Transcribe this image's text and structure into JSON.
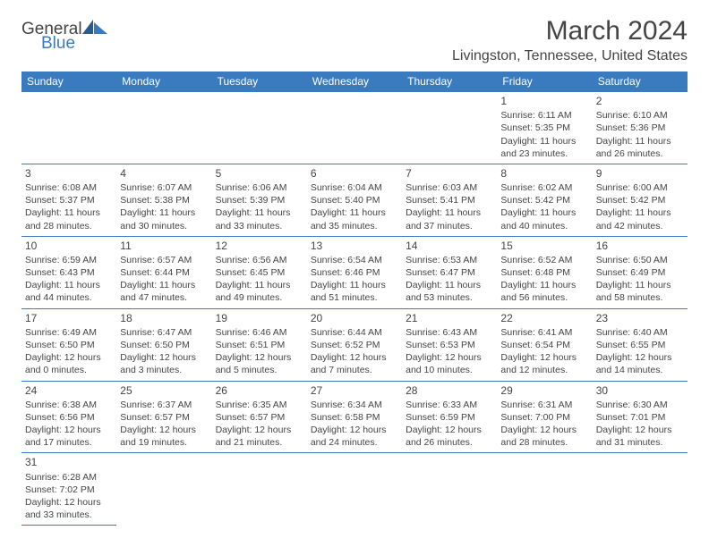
{
  "logo": {
    "general": "General",
    "blue": "Blue"
  },
  "title": "March 2024",
  "location": "Livingston, Tennessee, United States",
  "weekdays": [
    "Sunday",
    "Monday",
    "Tuesday",
    "Wednesday",
    "Thursday",
    "Friday",
    "Saturday"
  ],
  "colors": {
    "header_bg": "#3a7bbf",
    "header_text": "#ffffff",
    "border": "#3a7bbf",
    "body_text": "#444444",
    "background": "#ffffff"
  },
  "rows": [
    [
      null,
      null,
      null,
      null,
      null,
      {
        "day": "1",
        "sunrise": "Sunrise: 6:11 AM",
        "sunset": "Sunset: 5:35 PM",
        "daylight": "Daylight: 11 hours and 23 minutes."
      },
      {
        "day": "2",
        "sunrise": "Sunrise: 6:10 AM",
        "sunset": "Sunset: 5:36 PM",
        "daylight": "Daylight: 11 hours and 26 minutes."
      }
    ],
    [
      {
        "day": "3",
        "sunrise": "Sunrise: 6:08 AM",
        "sunset": "Sunset: 5:37 PM",
        "daylight": "Daylight: 11 hours and 28 minutes."
      },
      {
        "day": "4",
        "sunrise": "Sunrise: 6:07 AM",
        "sunset": "Sunset: 5:38 PM",
        "daylight": "Daylight: 11 hours and 30 minutes."
      },
      {
        "day": "5",
        "sunrise": "Sunrise: 6:06 AM",
        "sunset": "Sunset: 5:39 PM",
        "daylight": "Daylight: 11 hours and 33 minutes."
      },
      {
        "day": "6",
        "sunrise": "Sunrise: 6:04 AM",
        "sunset": "Sunset: 5:40 PM",
        "daylight": "Daylight: 11 hours and 35 minutes."
      },
      {
        "day": "7",
        "sunrise": "Sunrise: 6:03 AM",
        "sunset": "Sunset: 5:41 PM",
        "daylight": "Daylight: 11 hours and 37 minutes."
      },
      {
        "day": "8",
        "sunrise": "Sunrise: 6:02 AM",
        "sunset": "Sunset: 5:42 PM",
        "daylight": "Daylight: 11 hours and 40 minutes."
      },
      {
        "day": "9",
        "sunrise": "Sunrise: 6:00 AM",
        "sunset": "Sunset: 5:42 PM",
        "daylight": "Daylight: 11 hours and 42 minutes."
      }
    ],
    [
      {
        "day": "10",
        "sunrise": "Sunrise: 6:59 AM",
        "sunset": "Sunset: 6:43 PM",
        "daylight": "Daylight: 11 hours and 44 minutes."
      },
      {
        "day": "11",
        "sunrise": "Sunrise: 6:57 AM",
        "sunset": "Sunset: 6:44 PM",
        "daylight": "Daylight: 11 hours and 47 minutes."
      },
      {
        "day": "12",
        "sunrise": "Sunrise: 6:56 AM",
        "sunset": "Sunset: 6:45 PM",
        "daylight": "Daylight: 11 hours and 49 minutes."
      },
      {
        "day": "13",
        "sunrise": "Sunrise: 6:54 AM",
        "sunset": "Sunset: 6:46 PM",
        "daylight": "Daylight: 11 hours and 51 minutes."
      },
      {
        "day": "14",
        "sunrise": "Sunrise: 6:53 AM",
        "sunset": "Sunset: 6:47 PM",
        "daylight": "Daylight: 11 hours and 53 minutes."
      },
      {
        "day": "15",
        "sunrise": "Sunrise: 6:52 AM",
        "sunset": "Sunset: 6:48 PM",
        "daylight": "Daylight: 11 hours and 56 minutes."
      },
      {
        "day": "16",
        "sunrise": "Sunrise: 6:50 AM",
        "sunset": "Sunset: 6:49 PM",
        "daylight": "Daylight: 11 hours and 58 minutes."
      }
    ],
    [
      {
        "day": "17",
        "sunrise": "Sunrise: 6:49 AM",
        "sunset": "Sunset: 6:50 PM",
        "daylight": "Daylight: 12 hours and 0 minutes."
      },
      {
        "day": "18",
        "sunrise": "Sunrise: 6:47 AM",
        "sunset": "Sunset: 6:50 PM",
        "daylight": "Daylight: 12 hours and 3 minutes."
      },
      {
        "day": "19",
        "sunrise": "Sunrise: 6:46 AM",
        "sunset": "Sunset: 6:51 PM",
        "daylight": "Daylight: 12 hours and 5 minutes."
      },
      {
        "day": "20",
        "sunrise": "Sunrise: 6:44 AM",
        "sunset": "Sunset: 6:52 PM",
        "daylight": "Daylight: 12 hours and 7 minutes."
      },
      {
        "day": "21",
        "sunrise": "Sunrise: 6:43 AM",
        "sunset": "Sunset: 6:53 PM",
        "daylight": "Daylight: 12 hours and 10 minutes."
      },
      {
        "day": "22",
        "sunrise": "Sunrise: 6:41 AM",
        "sunset": "Sunset: 6:54 PM",
        "daylight": "Daylight: 12 hours and 12 minutes."
      },
      {
        "day": "23",
        "sunrise": "Sunrise: 6:40 AM",
        "sunset": "Sunset: 6:55 PM",
        "daylight": "Daylight: 12 hours and 14 minutes."
      }
    ],
    [
      {
        "day": "24",
        "sunrise": "Sunrise: 6:38 AM",
        "sunset": "Sunset: 6:56 PM",
        "daylight": "Daylight: 12 hours and 17 minutes."
      },
      {
        "day": "25",
        "sunrise": "Sunrise: 6:37 AM",
        "sunset": "Sunset: 6:57 PM",
        "daylight": "Daylight: 12 hours and 19 minutes."
      },
      {
        "day": "26",
        "sunrise": "Sunrise: 6:35 AM",
        "sunset": "Sunset: 6:57 PM",
        "daylight": "Daylight: 12 hours and 21 minutes."
      },
      {
        "day": "27",
        "sunrise": "Sunrise: 6:34 AM",
        "sunset": "Sunset: 6:58 PM",
        "daylight": "Daylight: 12 hours and 24 minutes."
      },
      {
        "day": "28",
        "sunrise": "Sunrise: 6:33 AM",
        "sunset": "Sunset: 6:59 PM",
        "daylight": "Daylight: 12 hours and 26 minutes."
      },
      {
        "day": "29",
        "sunrise": "Sunrise: 6:31 AM",
        "sunset": "Sunset: 7:00 PM",
        "daylight": "Daylight: 12 hours and 28 minutes."
      },
      {
        "day": "30",
        "sunrise": "Sunrise: 6:30 AM",
        "sunset": "Sunset: 7:01 PM",
        "daylight": "Daylight: 12 hours and 31 minutes."
      }
    ],
    [
      {
        "day": "31",
        "sunrise": "Sunrise: 6:28 AM",
        "sunset": "Sunset: 7:02 PM",
        "daylight": "Daylight: 12 hours and 33 minutes."
      },
      null,
      null,
      null,
      null,
      null,
      null
    ]
  ]
}
